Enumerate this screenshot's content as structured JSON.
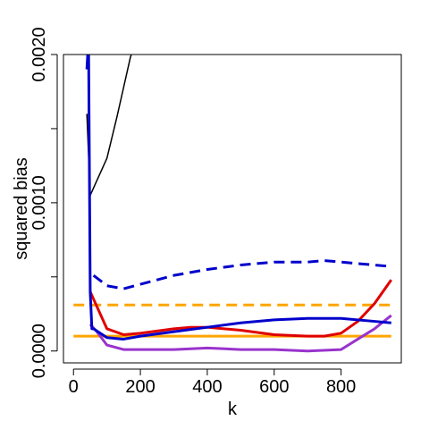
{
  "chart_data": {
    "type": "line",
    "title": "",
    "xlabel": "k",
    "ylabel": "squared bias",
    "xlim": [
      -30,
      980
    ],
    "ylim": [
      -8e-05,
      0.002
    ],
    "xticks": [
      0,
      200,
      400,
      600,
      800
    ],
    "xtick_labels": [
      "0",
      "200",
      "400",
      "600",
      "800"
    ],
    "yticks": [
      0.0,
      0.0005,
      0.001,
      0.0015,
      0.002
    ],
    "ytick_labels": [
      "0.0000",
      "",
      "0.0010",
      "",
      "0.0020"
    ],
    "grid": false,
    "legend": "none",
    "series": [
      {
        "color": "#000000",
        "dash": "solid",
        "width": 1.5,
        "x": [
          40,
          50,
          70,
          100,
          130,
          150,
          170,
          180
        ],
        "y": [
          0.0016,
          0.00105,
          0.00115,
          0.0013,
          0.00158,
          0.00178,
          0.00198,
          0.00205
        ]
      },
      {
        "color": "#0000cc",
        "dash": "dashed",
        "width": 3,
        "x": [
          60,
          100,
          150,
          200,
          300,
          400,
          500,
          600,
          700,
          750,
          800,
          900,
          950
        ],
        "y": [
          0.00051,
          0.00044,
          0.00042,
          0.00045,
          0.00051,
          0.00055,
          0.00058,
          0.0006,
          0.0006,
          0.00061,
          0.0006,
          0.00058,
          0.00057
        ]
      },
      {
        "color": "#ffa500",
        "dash": "dashed",
        "width": 3,
        "x": [
          0,
          950
        ],
        "y": [
          0.00031,
          0.00031
        ]
      },
      {
        "color": "#ffa500",
        "dash": "solid",
        "width": 3,
        "x": [
          0,
          950
        ],
        "y": [
          0.0001,
          0.0001
        ]
      },
      {
        "color": "#e00000",
        "dash": "solid",
        "width": 3,
        "x": [
          50,
          60,
          100,
          150,
          200,
          300,
          350,
          400,
          500,
          600,
          700,
          750,
          800,
          850,
          900,
          950
        ],
        "y": [
          0.0004,
          0.00035,
          0.00015,
          0.00011,
          0.00012,
          0.00015,
          0.00016,
          0.00016,
          0.00014,
          0.00011,
          0.0001,
          0.0001,
          0.00012,
          0.0002,
          0.00032,
          0.00048
        ]
      },
      {
        "color": "#9933cc",
        "dash": "solid",
        "width": 3,
        "x": [
          50,
          70,
          100,
          150,
          200,
          300,
          400,
          500,
          600,
          700,
          800,
          850,
          900,
          950
        ],
        "y": [
          0.00018,
          0.00013,
          4e-05,
          1e-05,
          1e-05,
          1e-05,
          2e-05,
          1e-05,
          1e-05,
          0.0,
          1e-05,
          8e-05,
          0.00015,
          0.00024
        ]
      },
      {
        "color": "#0000cc",
        "dash": "solid",
        "width": 3,
        "x": [
          40,
          45,
          50,
          55,
          60,
          100,
          150,
          200,
          300,
          400,
          500,
          600,
          700,
          800,
          900,
          950
        ],
        "y": [
          0.0019,
          0.0021,
          0.0004,
          0.00015,
          0.00015,
          9e-05,
          8e-05,
          0.0001,
          0.00013,
          0.00016,
          0.00019,
          0.00021,
          0.00022,
          0.00022,
          0.0002,
          0.00019
        ]
      }
    ]
  }
}
